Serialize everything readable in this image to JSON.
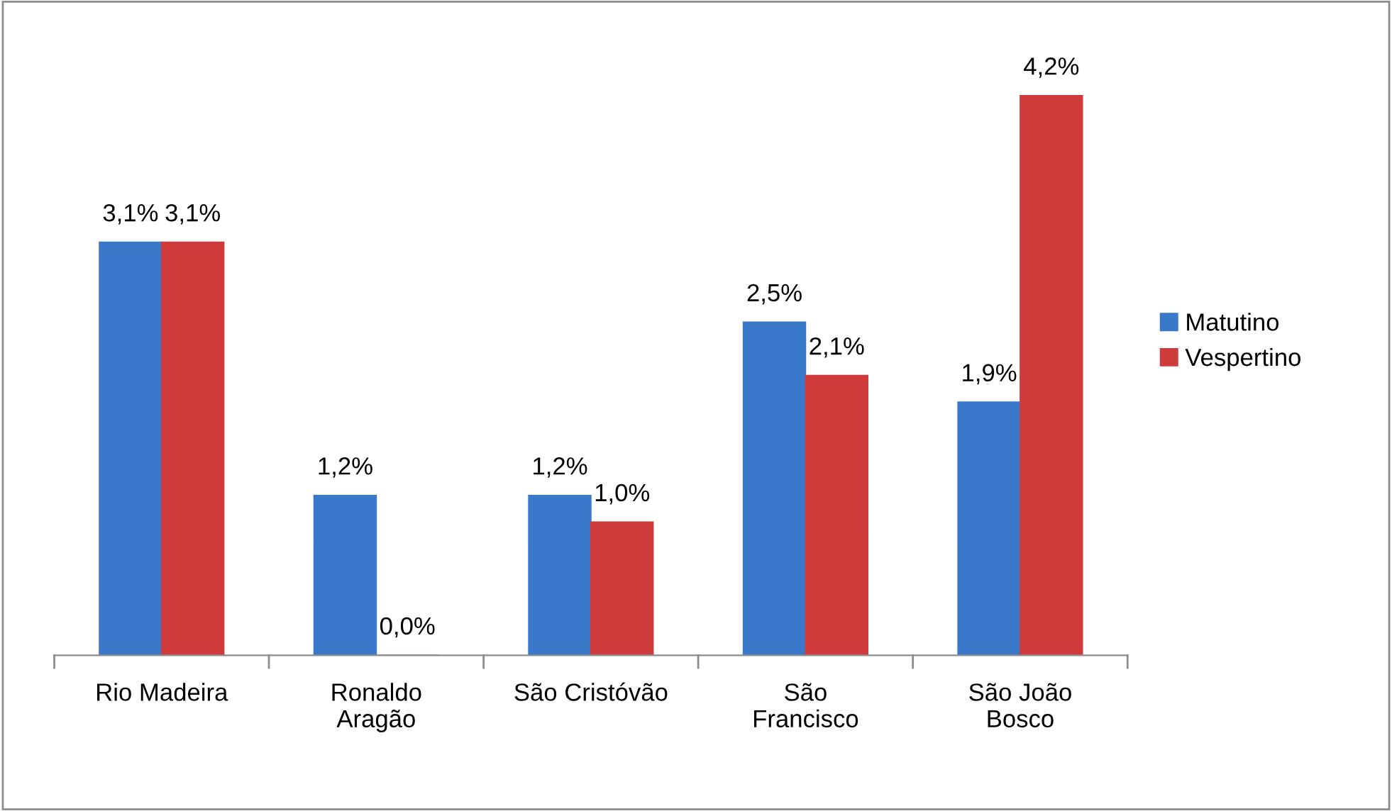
{
  "chart_data": {
    "type": "bar",
    "categories": [
      "Rio Madeira",
      "Ronaldo\nAragão",
      "São Cristóvão",
      "São\nFrancisco",
      "São João\nBosco"
    ],
    "series": [
      {
        "name": "Matutino",
        "color": "#3a78c9",
        "values": [
          3.1,
          1.2,
          1.2,
          2.5,
          1.9
        ],
        "value_labels": [
          "3,1%",
          "1,2%",
          "1,2%",
          "2,5%",
          "1,9%"
        ]
      },
      {
        "name": "Vespertino",
        "color": "#cf3b3b",
        "values": [
          3.1,
          0.0,
          1.0,
          2.1,
          4.2
        ],
        "value_labels": [
          "3,1%",
          "0,0%",
          "1,0%",
          "2,1%",
          "4,2%"
        ]
      }
    ],
    "legend": "right",
    "grid": false
  }
}
